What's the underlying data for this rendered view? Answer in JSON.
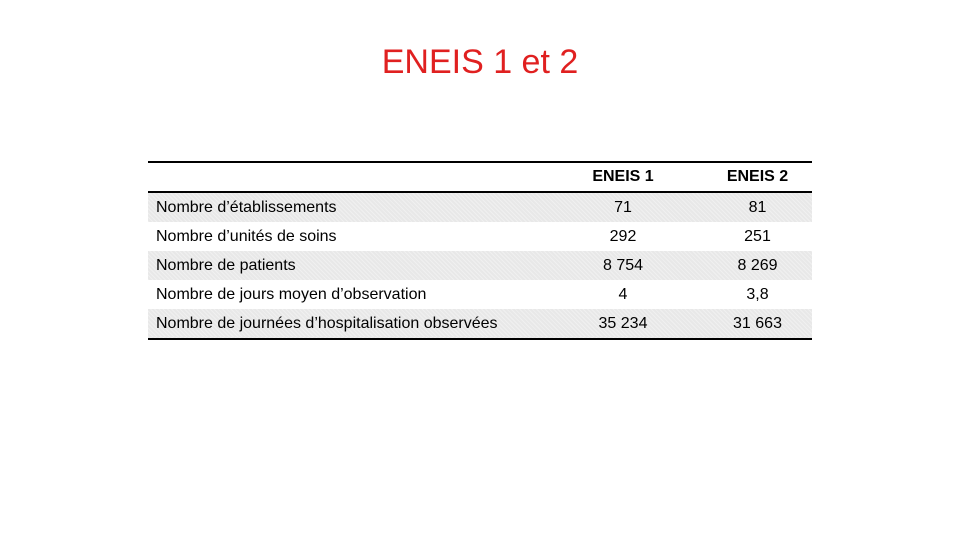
{
  "title": "ENEIS 1 et 2",
  "table": {
    "headers": [
      "",
      "ENEIS 1",
      "ENEIS 2"
    ],
    "rows": [
      {
        "label": "Nombre d’établissements",
        "eneis1": "71",
        "eneis2": "81"
      },
      {
        "label": "Nombre d’unités de soins",
        "eneis1": "292",
        "eneis2": "251"
      },
      {
        "label": "Nombre de patients",
        "eneis1": "8 754",
        "eneis2": "8 269"
      },
      {
        "label": "Nombre de jours moyen d’observation",
        "eneis1": "4",
        "eneis2": "3,8"
      },
      {
        "label": "Nombre de journées d’hospitalisation observées",
        "eneis1": "35 234",
        "eneis2": "31 663"
      }
    ]
  },
  "colors": {
    "title": "#e02020",
    "row_shade": "#e8e8e8",
    "rule": "#000000"
  }
}
